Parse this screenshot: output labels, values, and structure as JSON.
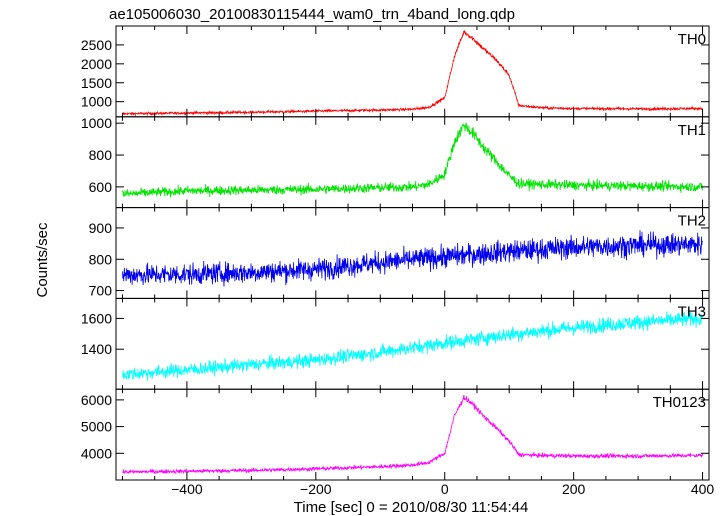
{
  "chart_data": {
    "type": "line",
    "title": "ae105006030_20100830115444_wam0_trn_4band_long.qdp",
    "xlabel": "Time [sec] 0 = 2010/08/30 11:54:44",
    "ylabel": "Counts/sec",
    "xlim": [
      -510,
      410
    ],
    "xticks": [
      -400,
      -200,
      0,
      200,
      400
    ],
    "grid": false,
    "panels": [
      {
        "name": "TH0",
        "color": "#ff0000",
        "ylim": [
          600,
          3000
        ],
        "yticks": [
          1000,
          1500,
          2000,
          2500
        ],
        "x": [
          -500,
          -400,
          -300,
          -200,
          -100,
          -50,
          -25,
          0,
          15,
          30,
          45,
          60,
          80,
          100,
          115,
          150,
          200,
          300,
          400
        ],
        "values": [
          680,
          700,
          720,
          750,
          780,
          800,
          850,
          1100,
          2200,
          2850,
          2650,
          2400,
          2100,
          1700,
          900,
          840,
          820,
          810,
          820
        ]
      },
      {
        "name": "TH1",
        "color": "#00e400",
        "ylim": [
          470,
          1040
        ],
        "yticks": [
          600,
          800,
          1000
        ],
        "x": [
          -500,
          -400,
          -300,
          -200,
          -100,
          -50,
          -25,
          0,
          15,
          30,
          45,
          60,
          80,
          100,
          115,
          150,
          200,
          300,
          400
        ],
        "values": [
          555,
          575,
          580,
          585,
          595,
          600,
          615,
          680,
          880,
          990,
          930,
          850,
          760,
          670,
          620,
          615,
          610,
          605,
          600
        ]
      },
      {
        "name": "TH2",
        "color": "#0000ee",
        "ylim": [
          675,
          965
        ],
        "yticks": [
          700,
          800,
          900
        ],
        "x": [
          -500,
          -400,
          -300,
          -200,
          -100,
          0,
          100,
          200,
          300,
          400
        ],
        "values": [
          750,
          752,
          758,
          768,
          790,
          808,
          825,
          838,
          845,
          848
        ]
      },
      {
        "name": "TH3",
        "color": "#00ffff",
        "ylim": [
          1140,
          1730
        ],
        "yticks": [
          1400,
          1600
        ],
        "x": [
          -500,
          -400,
          -300,
          -200,
          -100,
          0,
          100,
          200,
          300,
          400
        ],
        "values": [
          1235,
          1265,
          1300,
          1330,
          1380,
          1440,
          1495,
          1540,
          1575,
          1600
        ]
      },
      {
        "name": "TH0123",
        "color": "#ff00ff",
        "ylim": [
          3000,
          6400
        ],
        "yticks": [
          4000,
          5000,
          6000
        ],
        "x": [
          -500,
          -400,
          -300,
          -200,
          -100,
          -50,
          -25,
          0,
          15,
          30,
          45,
          60,
          80,
          100,
          115,
          150,
          200,
          300,
          400
        ],
        "values": [
          3300,
          3330,
          3360,
          3420,
          3500,
          3560,
          3650,
          4000,
          5400,
          6100,
          5800,
          5400,
          4950,
          4450,
          3950,
          3920,
          3900,
          3900,
          3920
        ]
      }
    ]
  }
}
